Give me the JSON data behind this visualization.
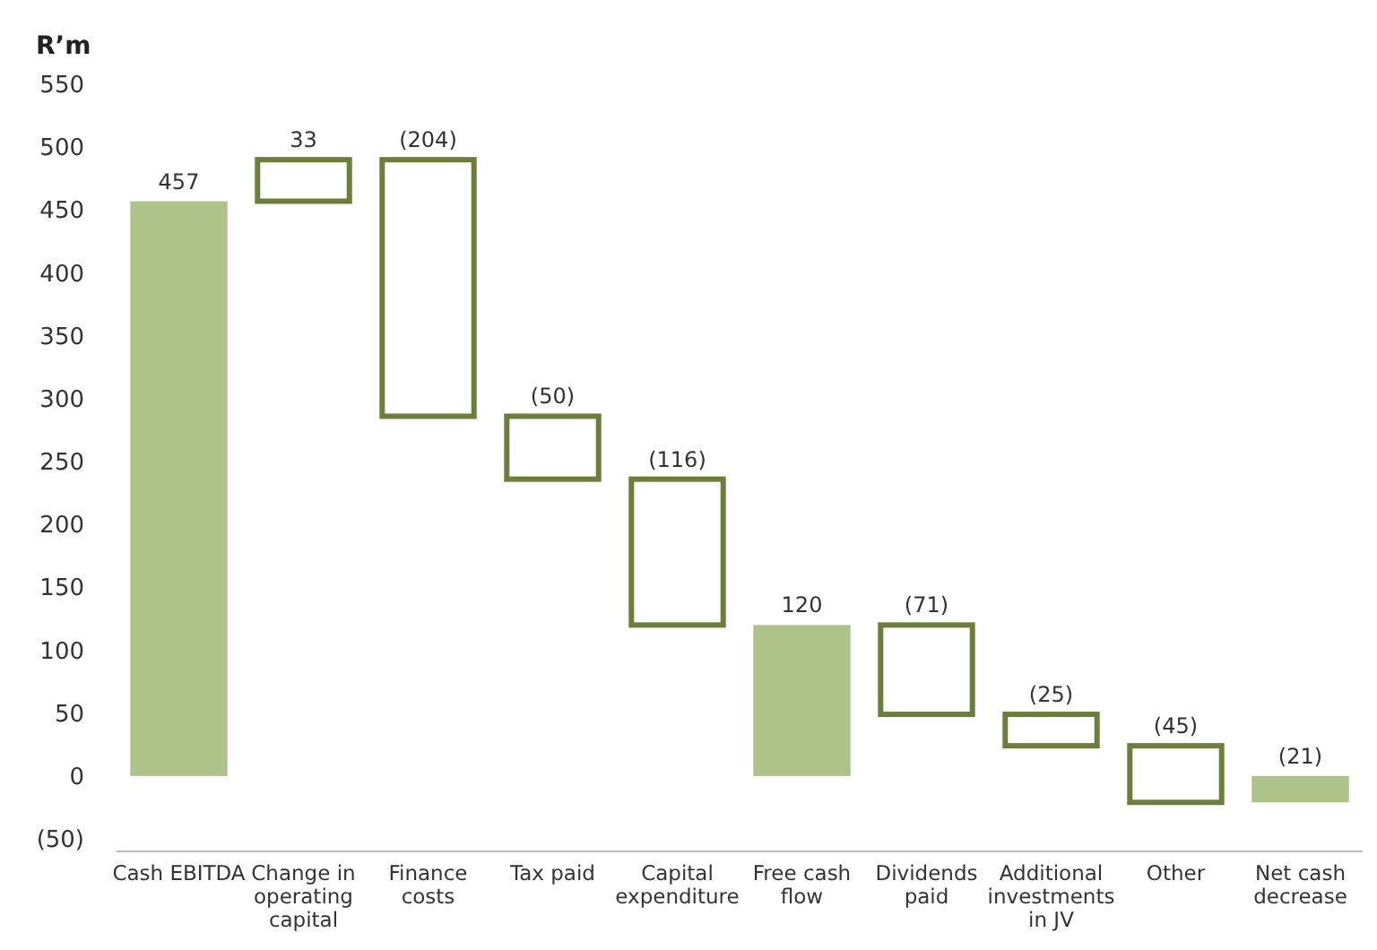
{
  "chart_data": {
    "type": "bar",
    "ylabel": "R’m",
    "categories": [
      "Cash EBITDA",
      "Change in operating capital",
      "Finance costs",
      "Tax paid",
      "Capital expenditure",
      "Free cash flow",
      "Dividends paid",
      "Additional investments in JV",
      "Other",
      "Net cash decrease"
    ],
    "values": [
      457,
      33,
      -204,
      -50,
      -116,
      120,
      -71,
      -25,
      -45,
      -21
    ],
    "base": [
      null,
      457,
      490,
      286,
      236,
      null,
      120,
      49,
      24,
      null
    ],
    "colors": [
      "#adc38a",
      "#6b7f3a",
      "#6b7f3a",
      "#6b7f3a",
      "#6b7f3a",
      "#adc38a",
      "#6b7f3a",
      "#6b7f3a",
      "#6b7f3a",
      "#adc38a"
    ],
    "value_labels": [
      "457",
      "33",
      "(204)",
      "(50)",
      "(116)",
      "120",
      "(71)",
      "(25)",
      "(45)",
      "(21)"
    ],
    "ylim": [
      -60,
      550
    ],
    "yticks": [
      {
        "value": -50,
        "label": "(50)"
      },
      0,
      50,
      100,
      150,
      200,
      250,
      300,
      350,
      400,
      450,
      500,
      550
    ],
    "grid": false
  }
}
